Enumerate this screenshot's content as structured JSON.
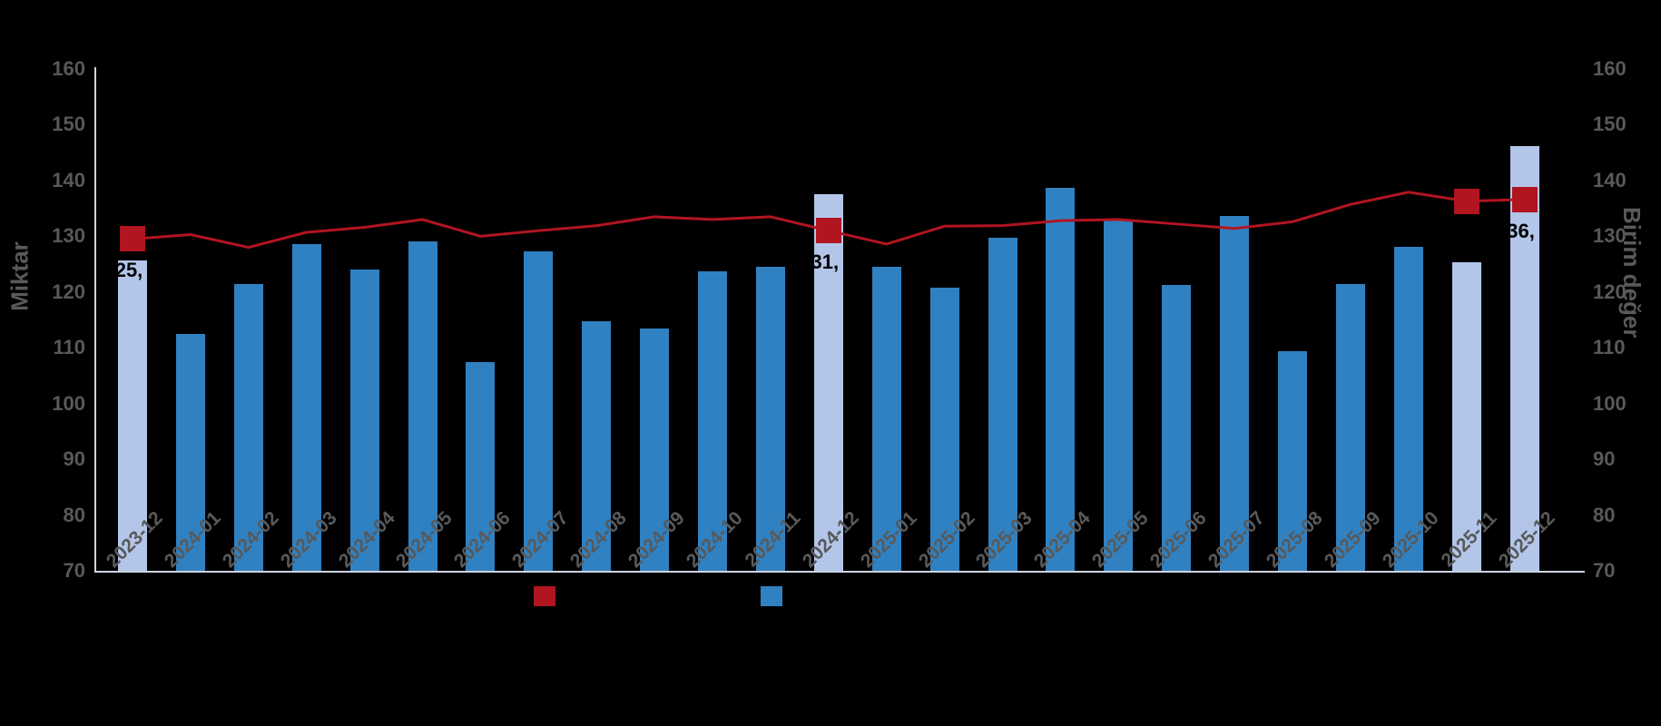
{
  "axes": {
    "left": {
      "title": "Miktar",
      "ticks": [
        "160",
        "150",
        "140",
        "130",
        "120",
        "110",
        "100",
        "90",
        "80",
        "70"
      ]
    },
    "right": {
      "title": "Birim değer",
      "ticks": [
        "160",
        "150",
        "140",
        "130",
        "120",
        "110",
        "100",
        "90",
        "80",
        "70"
      ]
    }
  },
  "chart_data": {
    "type": "combo (bar + line)",
    "title": "",
    "categories": [
      "2023-12",
      "2024-01",
      "2024-02",
      "2024-03",
      "2024-04",
      "2024-05",
      "2024-06",
      "2024-07",
      "2024-08",
      "2024-09",
      "2024-10",
      "2024-11",
      "2024-12",
      "2025-01",
      "2025-02",
      "2025-03",
      "2025-04",
      "2025-05",
      "2025-06",
      "2025-07",
      "2025-08",
      "2025-09",
      "2025-10",
      "2025-11",
      "2025-12"
    ],
    "ylim": [
      70,
      160
    ],
    "grid": false,
    "legend_position": "bottom",
    "series": [
      {
        "name": "Miktar",
        "type": "bar",
        "axis": "left",
        "color": "#3081c1",
        "highlight_color": "#b3c6ea",
        "highlighted_indices": [
          0,
          12,
          23,
          24
        ],
        "values": [
          125.7,
          112.4,
          121.5,
          128.6,
          124.1,
          129.0,
          107.4,
          127.3,
          114.7,
          113.4,
          123.7,
          124.5,
          137.6,
          124.5,
          120.8,
          129.8,
          138.6,
          133.0,
          121.2,
          133.7,
          109.4,
          121.4,
          128.1,
          125.4,
          146.2
        ]
      },
      {
        "name": "Birim değer",
        "type": "line",
        "axis": "right",
        "color": "#b11520",
        "marker_indices": [
          0,
          12,
          23,
          24
        ],
        "values": [
          129.5,
          130.3,
          128.0,
          130.7,
          131.6,
          133.0,
          130.0,
          131.0,
          131.9,
          133.5,
          133.0,
          133.5,
          131.0,
          128.6,
          131.8,
          131.9,
          132.8,
          133.0,
          132.2,
          131.4,
          132.6,
          135.7,
          137.9,
          136.3,
          136.6
        ]
      }
    ],
    "data_labels": [
      {
        "index": 0,
        "text": "25,"
      },
      {
        "index": 12,
        "text": "31,"
      },
      {
        "index": 24,
        "text": "36,"
      }
    ],
    "legend": [
      {
        "swatch_color": "#b11520",
        "label": ""
      },
      {
        "swatch_color": "#3081c1",
        "label": ""
      }
    ]
  },
  "colors": {
    "background": "#000000",
    "tick_text": "#595959",
    "axis_line": "#ccd4e2",
    "data_label_text": "#000000"
  }
}
